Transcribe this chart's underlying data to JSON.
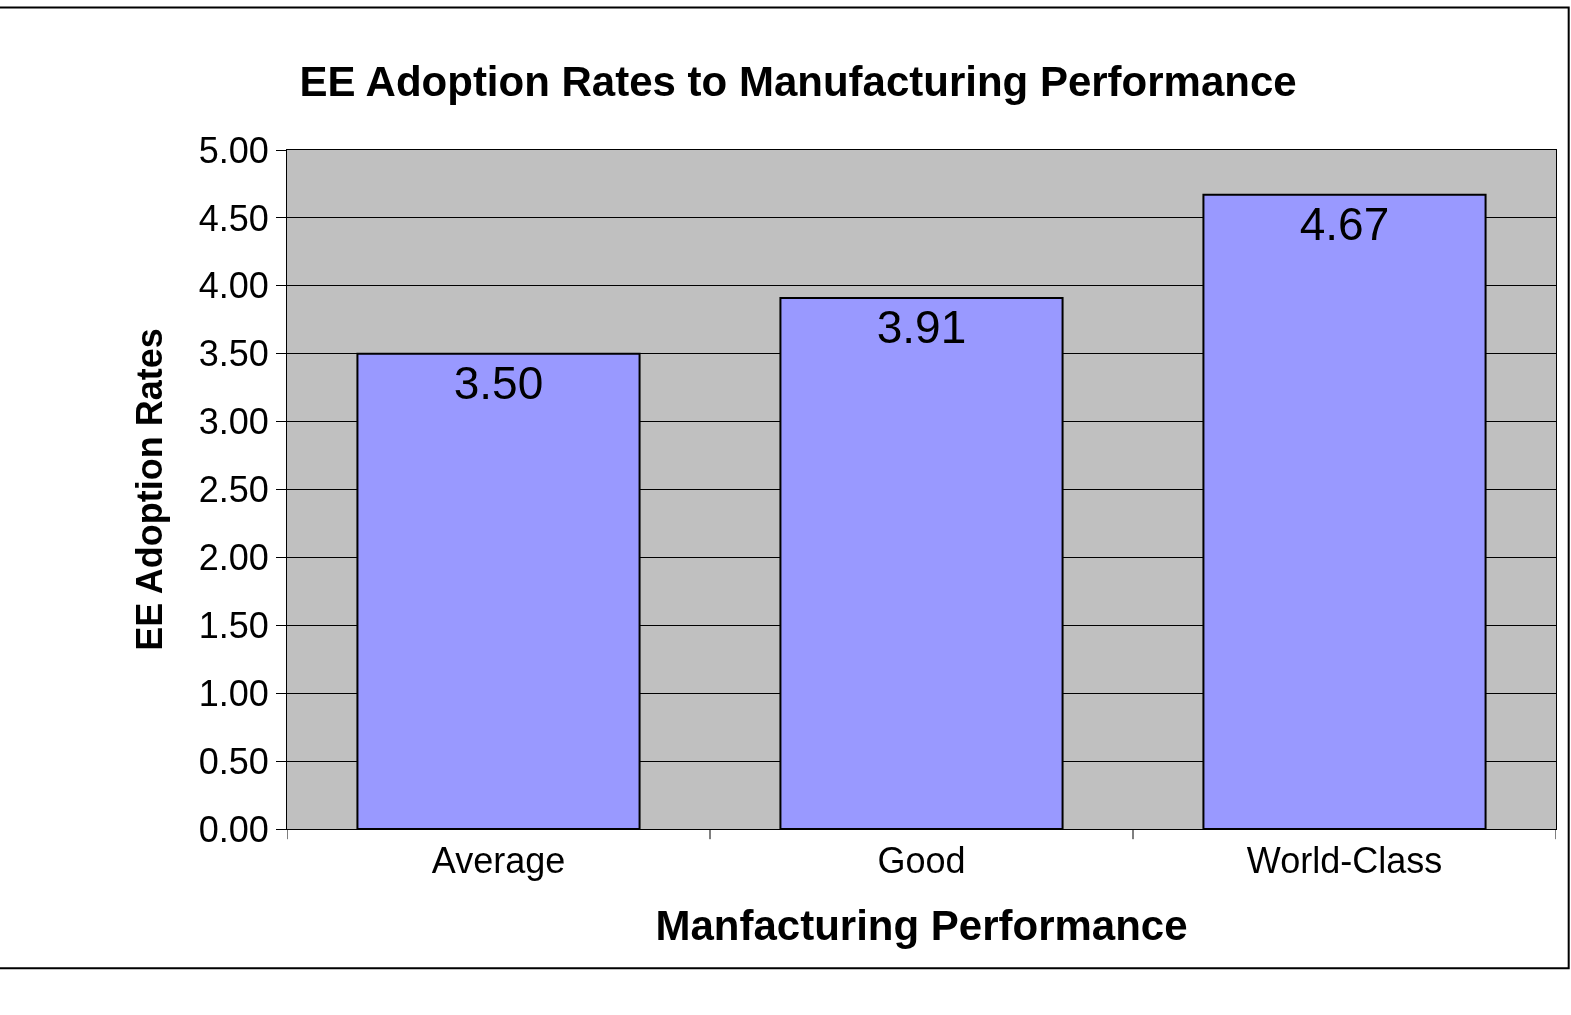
{
  "chart_data": {
    "type": "bar",
    "title": "EE Adoption Rates to Manufacturing Performance",
    "xlabel": "Manfacturing Performance",
    "ylabel": "EE Adoption Rates",
    "categories": [
      "Average",
      "Good",
      "World-Class"
    ],
    "values": [
      3.5,
      3.91,
      4.67
    ],
    "value_labels": [
      "3.50",
      "3.91",
      "4.67"
    ],
    "color": "#9999ff",
    "ylim": [
      0,
      5
    ],
    "yticks": [
      {
        "value": 0,
        "label": "0.00"
      },
      {
        "value": 0.5,
        "label": "0.50"
      },
      {
        "value": 1,
        "label": "1.00"
      },
      {
        "value": 1.5,
        "label": "1.50"
      },
      {
        "value": 2,
        "label": "2.00"
      },
      {
        "value": 2.5,
        "label": "2.50"
      },
      {
        "value": 3,
        "label": "3.00"
      },
      {
        "value": 3.5,
        "label": "3.50"
      },
      {
        "value": 4,
        "label": "4.00"
      },
      {
        "value": 4.5,
        "label": "4.50"
      },
      {
        "value": 5,
        "label": "5.00"
      }
    ],
    "grid": "y",
    "legend": false
  }
}
